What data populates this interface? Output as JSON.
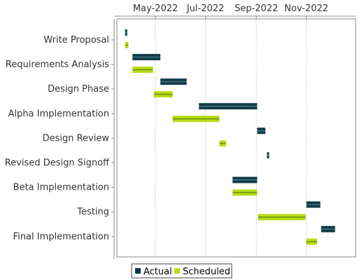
{
  "chart_data": {
    "type": "gantt",
    "title": "",
    "xlabel": "",
    "ylabel": "",
    "xlim": [
      "2022-03-15",
      "2022-12-31"
    ],
    "x_ticks": [
      "May-2022",
      "Jul-2022",
      "Sep-2022",
      "Nov-2022"
    ],
    "x_tick_dates": [
      "2022-05-01",
      "2022-07-01",
      "2022-09-01",
      "2022-11-01"
    ],
    "grid": "vertical dashed",
    "legend_position": "bottom-left",
    "categories": [
      "Write Proposal",
      "Requirements Analysis",
      "Design Phase",
      "Alpha Implementation",
      "Design Review",
      "Revised Design Signoff",
      "Beta Implementation",
      "Testing",
      "Final Implementation"
    ],
    "series": [
      {
        "name": "Actual",
        "color": "#0e3a47",
        "tasks": [
          {
            "task": "Write Proposal",
            "start": "2022-03-25",
            "end": "2022-03-27"
          },
          {
            "task": "Requirements Analysis",
            "start": "2022-04-03",
            "end": "2022-05-07"
          },
          {
            "task": "Design Phase",
            "start": "2022-05-07",
            "end": "2022-06-08"
          },
          {
            "task": "Alpha Implementation",
            "start": "2022-06-23",
            "end": "2022-09-02"
          },
          {
            "task": "Design Review",
            "start": "2022-09-02",
            "end": "2022-09-12"
          },
          {
            "task": "Revised Design Signoff",
            "start": "2022-09-14",
            "end": "2022-09-16"
          },
          {
            "task": "Beta Implementation",
            "start": "2022-08-03",
            "end": "2022-09-02"
          },
          {
            "task": "Testing",
            "start": "2022-11-01",
            "end": "2022-11-18"
          },
          {
            "task": "Final Implementation",
            "start": "2022-11-19",
            "end": "2022-12-06"
          }
        ]
      },
      {
        "name": "Scheduled",
        "color": "#b8dd16",
        "tasks": [
          {
            "task": "Write Proposal",
            "start": "2022-03-25",
            "end": "2022-03-29"
          },
          {
            "task": "Requirements Analysis",
            "start": "2022-04-03",
            "end": "2022-04-28"
          },
          {
            "task": "Design Phase",
            "start": "2022-04-29",
            "end": "2022-05-22"
          },
          {
            "task": "Alpha Implementation",
            "start": "2022-05-22",
            "end": "2022-07-18"
          },
          {
            "task": "Design Review",
            "start": "2022-07-18",
            "end": "2022-07-26"
          },
          {
            "task": "Beta Implementation",
            "start": "2022-08-03",
            "end": "2022-09-02"
          },
          {
            "task": "Testing",
            "start": "2022-09-03",
            "end": "2022-10-31"
          },
          {
            "task": "Final Implementation",
            "start": "2022-11-01",
            "end": "2022-11-14"
          }
        ]
      }
    ]
  }
}
